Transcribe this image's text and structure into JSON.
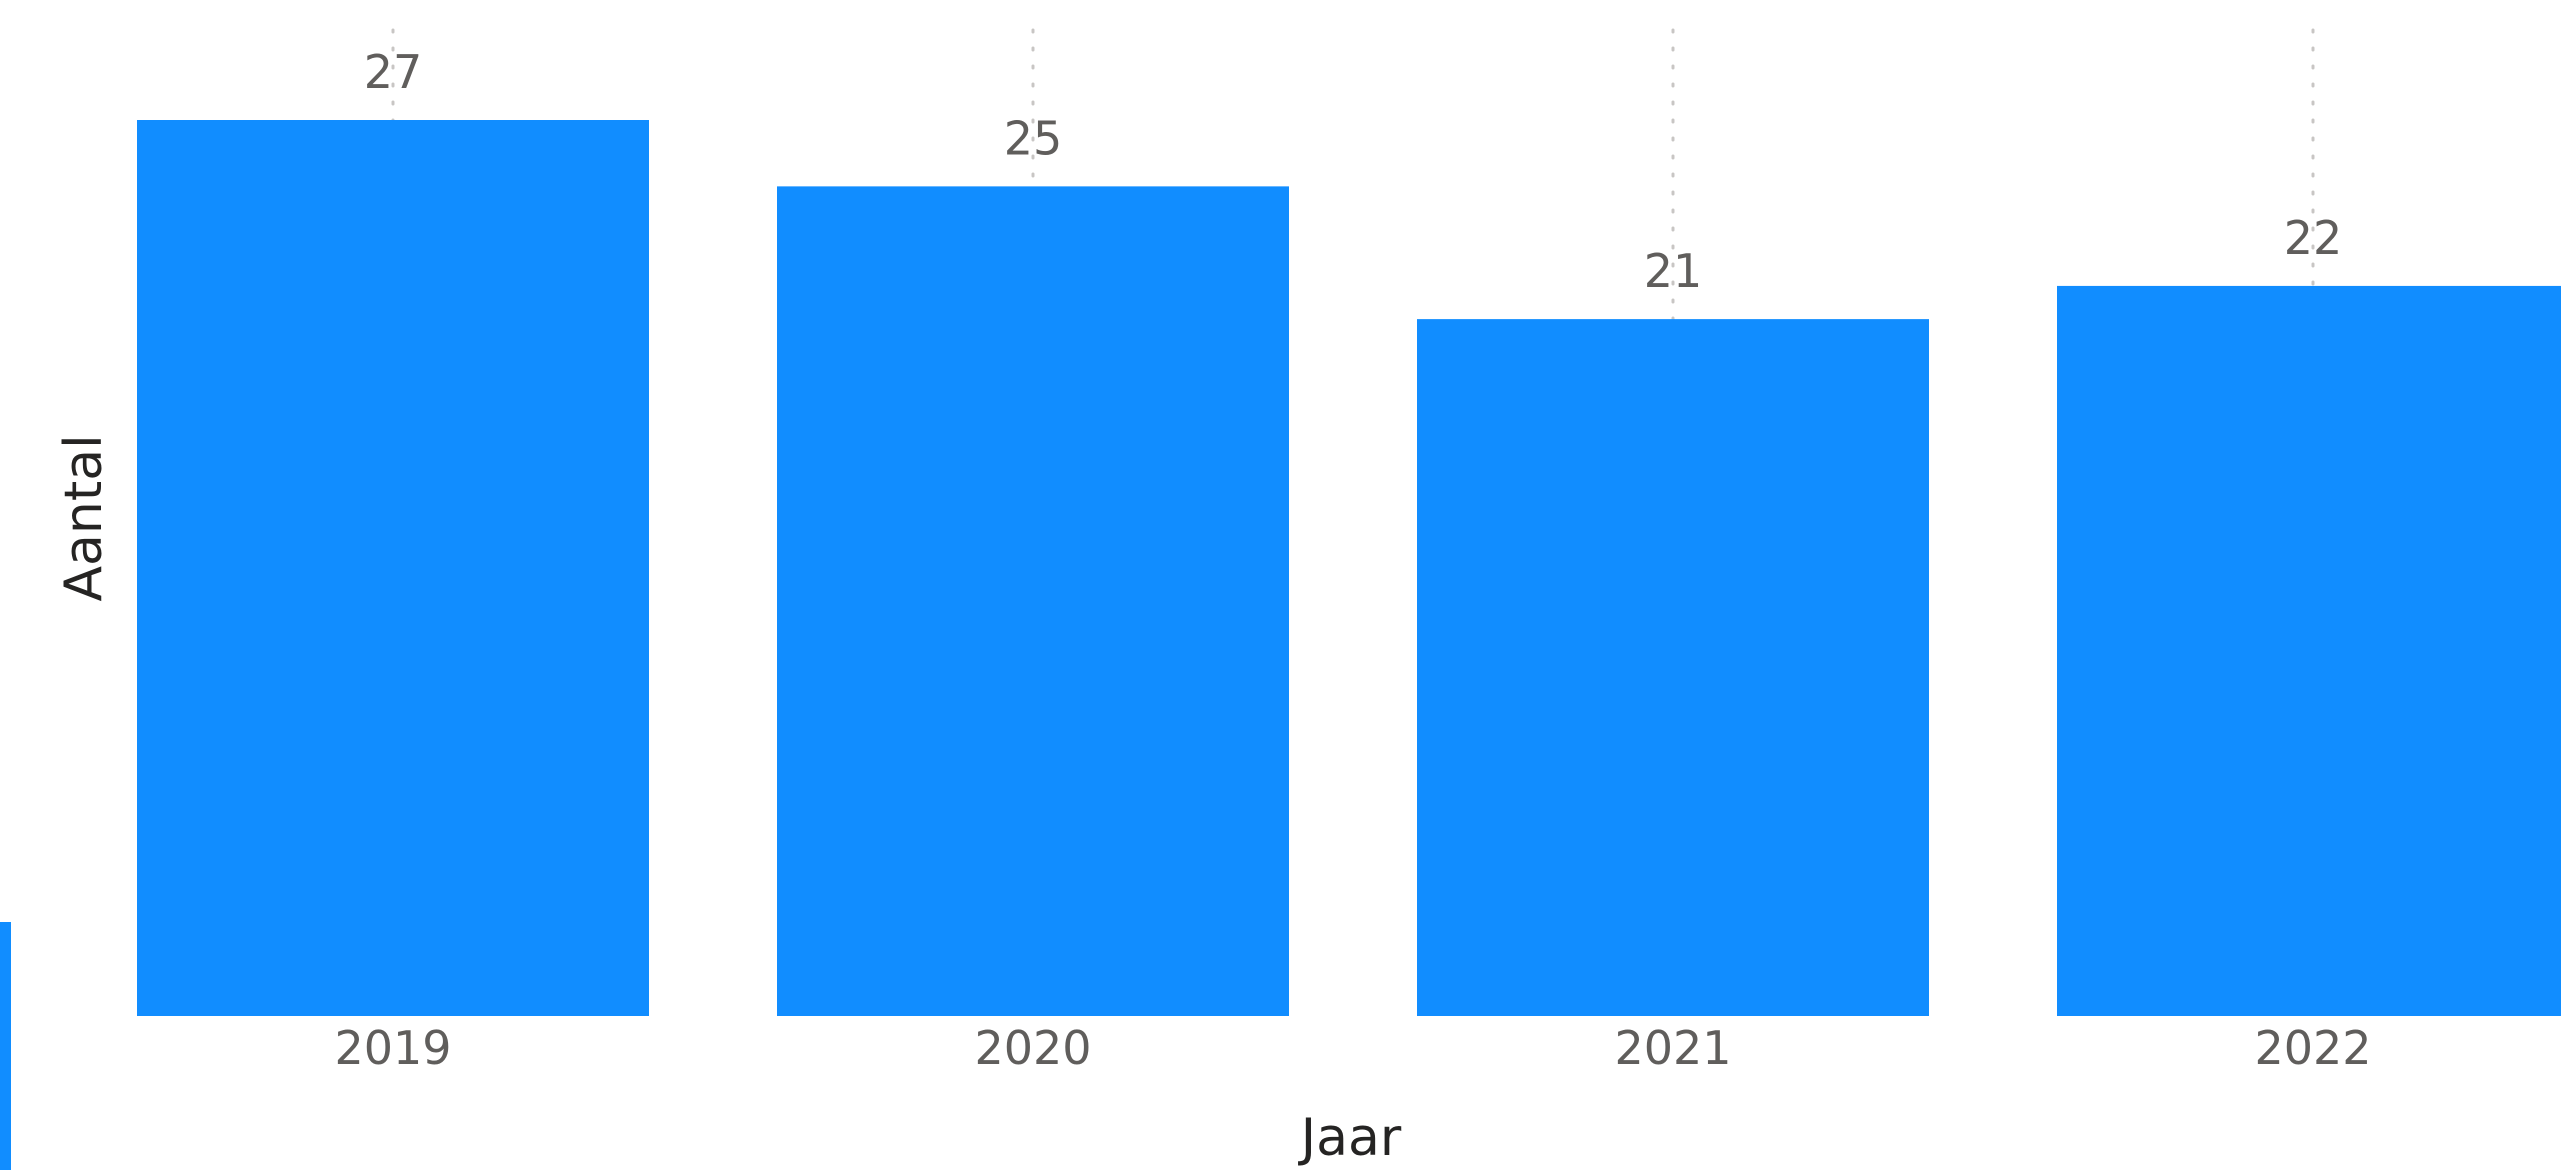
{
  "chart_data": {
    "type": "bar",
    "xlabel": "Jaar",
    "ylabel": "Aantal",
    "categories": [
      "2019",
      "2020",
      "2021",
      "2022"
    ],
    "values": [
      27,
      25,
      21,
      22
    ],
    "data_labels": [
      "27",
      "25",
      "21",
      "22"
    ],
    "ylim": [
      0,
      27
    ],
    "grid": "vertical dotted guide lines at category centers",
    "legend": "none",
    "colors": {
      "bar": "#118dff",
      "data_label": "#605e5c",
      "tick_label": "#605e5c",
      "axis_title": "#252423",
      "guide_line": "#c8c6c4"
    }
  }
}
